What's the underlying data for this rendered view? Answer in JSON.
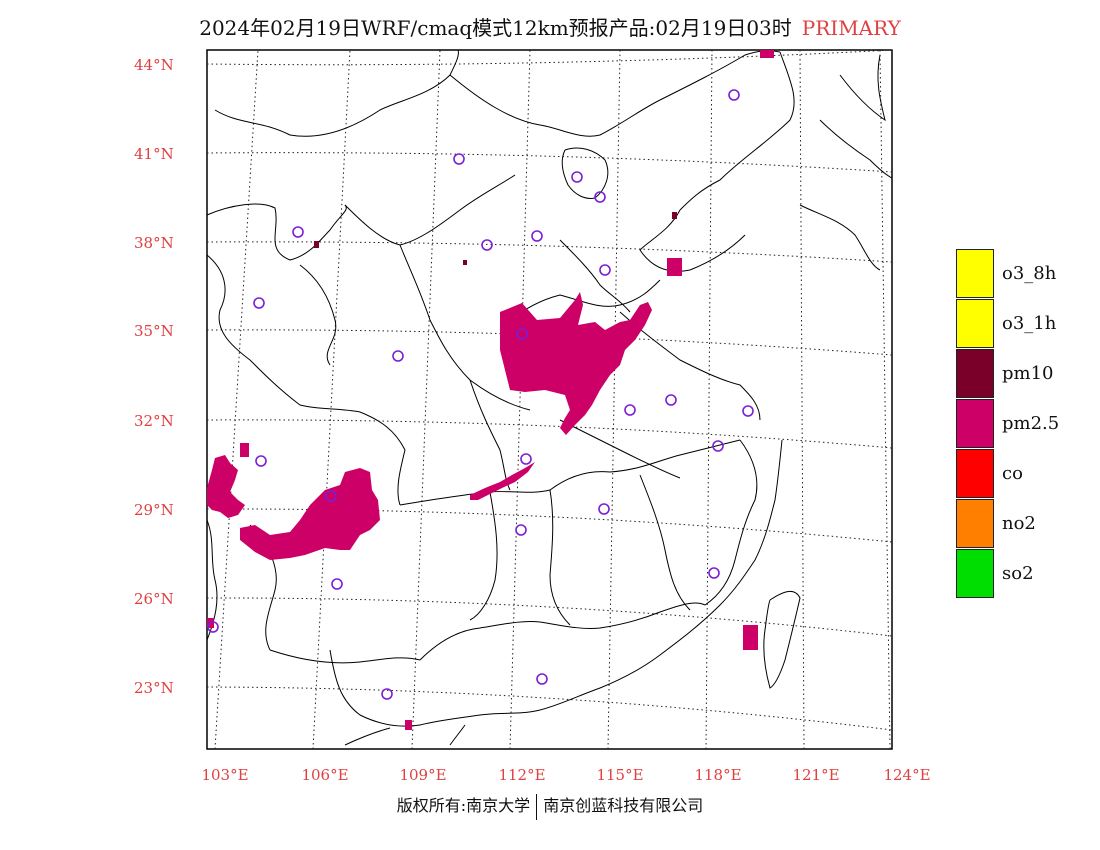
{
  "title": {
    "main": "2024年02月19日WRF/cmaq模式12km预报产品:02月19日03时",
    "tag": "PRIMARY"
  },
  "colors": {
    "label": "#e04040",
    "pm25": "#cc0066",
    "pm10": "#7a0029",
    "site": "#7a1fd6"
  },
  "axes": {
    "lat_labels": [
      "44°N",
      "41°N",
      "38°N",
      "35°N",
      "32°N",
      "29°N",
      "26°N",
      "23°N"
    ],
    "lon_labels": [
      "103°E",
      "106°E",
      "109°E",
      "112°E",
      "115°E",
      "118°E",
      "121°E",
      "124°E"
    ]
  },
  "legend": [
    {
      "label": "o3_8h",
      "color": "#ffff00"
    },
    {
      "label": "o3_1h",
      "color": "#ffff00"
    },
    {
      "label": "pm10",
      "color": "#7a0029"
    },
    {
      "label": "pm2.5",
      "color": "#cc0066"
    },
    {
      "label": "co",
      "color": "#ff0000"
    },
    {
      "label": "no2",
      "color": "#ff7f00"
    },
    {
      "label": "so2",
      "color": "#00dd00"
    }
  ],
  "footer": {
    "left": "版权所有:南京大学",
    "right": "南京创蓝科技有限公司"
  }
}
